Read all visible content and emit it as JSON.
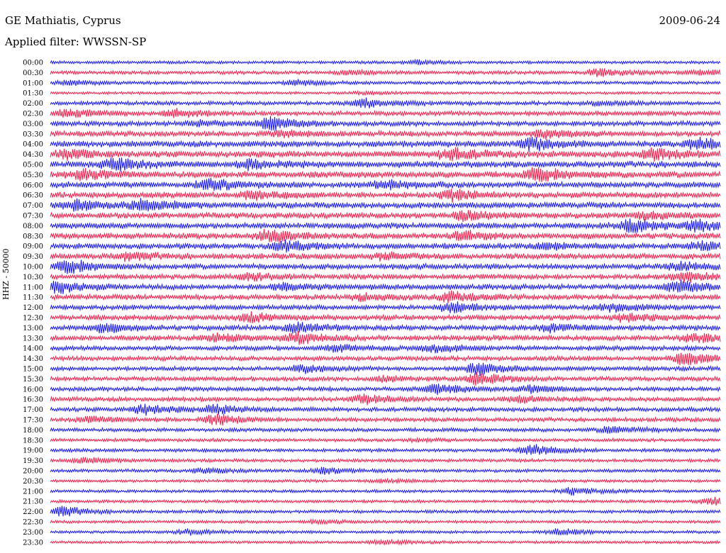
{
  "header": {
    "station": "GE Mathiatis, Cyprus",
    "date": "2009-06-24",
    "filter": "Applied filter: WWSSN-SP"
  },
  "chart_data": {
    "type": "line",
    "title": "GE Mathiatis, Cyprus",
    "subtitle": "Applied filter: WWSSN-SP",
    "ylabel": "HHZ - 50000",
    "y_tick_labels": [
      "00:00",
      "00:30",
      "01:00",
      "01:30",
      "02:00",
      "02:30",
      "03:00",
      "03:30",
      "04:00",
      "04:30",
      "05:00",
      "05:30",
      "06:00",
      "06:30",
      "07:00",
      "07:30",
      "08:00",
      "08:30",
      "09:00",
      "09:30",
      "10:00",
      "10:30",
      "11:00",
      "11:30",
      "12:00",
      "12:30",
      "13:00",
      "13:30",
      "14:00",
      "14:30",
      "15:00",
      "15:30",
      "16:00",
      "16:30",
      "17:00",
      "17:30",
      "18:00",
      "18:30",
      "19:00",
      "19:30",
      "20:00",
      "20:30",
      "21:00",
      "21:30",
      "22:00",
      "22:30",
      "23:00",
      "23:30"
    ],
    "trace_colors": [
      "#1a1aef",
      "#f0204f"
    ],
    "noise_level": [
      0.25,
      0.35,
      0.3,
      0.2,
      0.45,
      0.55,
      0.6,
      0.7,
      0.85,
      0.9,
      0.9,
      0.9,
      0.8,
      0.8,
      0.8,
      0.75,
      0.8,
      0.8,
      0.75,
      0.75,
      0.7,
      0.65,
      0.7,
      0.65,
      0.6,
      0.65,
      0.65,
      0.65,
      0.55,
      0.55,
      0.5,
      0.5,
      0.5,
      0.5,
      0.5,
      0.45,
      0.4,
      0.3,
      0.35,
      0.3,
      0.3,
      0.25,
      0.25,
      0.25,
      0.3,
      0.25,
      0.25,
      0.2
    ],
    "events": [
      [
        {
          "t": 0.55,
          "a": 0.3
        }
      ],
      [
        {
          "t": 0.82,
          "a": 0.6
        },
        {
          "t": 0.45,
          "a": 0.3
        },
        {
          "t": 0.97,
          "a": 0.4
        }
      ],
      [
        {
          "t": 0.37,
          "a": 0.4
        },
        {
          "t": 0.03,
          "a": 0.3
        }
      ],
      [
        {
          "t": 0.47,
          "a": 0.2
        }
      ],
      [
        {
          "t": 0.47,
          "a": 0.7
        },
        {
          "t": 0.82,
          "a": 0.3
        }
      ],
      [
        {
          "t": 0.03,
          "a": 0.6
        },
        {
          "t": 0.19,
          "a": 0.7
        }
      ],
      [
        {
          "t": 0.33,
          "a": 1.0
        },
        {
          "t": 0.22,
          "a": 0.4
        }
      ],
      [
        {
          "t": 0.74,
          "a": 0.6
        },
        {
          "t": 0.35,
          "a": 0.4
        }
      ],
      [
        {
          "t": 0.72,
          "a": 1.0
        },
        {
          "t": 0.97,
          "a": 0.9
        }
      ],
      [
        {
          "t": 0.6,
          "a": 1.0
        },
        {
          "t": 0.9,
          "a": 0.8
        },
        {
          "t": 0.03,
          "a": 0.7
        }
      ],
      [
        {
          "t": 0.1,
          "a": 0.9
        },
        {
          "t": 0.3,
          "a": 0.6
        }
      ],
      [
        {
          "t": 0.73,
          "a": 1.0
        },
        {
          "t": 0.05,
          "a": 0.6
        }
      ],
      [
        {
          "t": 0.24,
          "a": 0.8
        },
        {
          "t": 0.5,
          "a": 0.7
        }
      ],
      [
        {
          "t": 0.6,
          "a": 0.8
        },
        {
          "t": 0.3,
          "a": 0.6
        }
      ],
      [
        {
          "t": 0.04,
          "a": 0.8
        },
        {
          "t": 0.14,
          "a": 0.9
        }
      ],
      [
        {
          "t": 0.62,
          "a": 0.7
        },
        {
          "t": 0.89,
          "a": 0.6
        }
      ],
      [
        {
          "t": 0.87,
          "a": 1.0
        },
        {
          "t": 0.97,
          "a": 0.8
        }
      ],
      [
        {
          "t": 0.33,
          "a": 1.0
        },
        {
          "t": 0.62,
          "a": 0.6
        }
      ],
      [
        {
          "t": 0.35,
          "a": 0.8
        },
        {
          "t": 0.74,
          "a": 0.6
        },
        {
          "t": 0.97,
          "a": 0.6
        }
      ],
      [
        {
          "t": 0.12,
          "a": 0.6
        },
        {
          "t": 0.5,
          "a": 0.5
        }
      ],
      [
        {
          "t": 0.03,
          "a": 1.0
        },
        {
          "t": 0.94,
          "a": 0.7
        }
      ],
      [
        {
          "t": 0.3,
          "a": 0.5
        },
        {
          "t": 0.95,
          "a": 0.9
        }
      ],
      [
        {
          "t": 0.01,
          "a": 1.0
        },
        {
          "t": 0.35,
          "a": 0.5
        },
        {
          "t": 0.94,
          "a": 0.9
        }
      ],
      [
        {
          "t": 0.6,
          "a": 0.8
        },
        {
          "t": 0.47,
          "a": 0.5
        }
      ],
      [
        {
          "t": 0.6,
          "a": 0.8
        },
        {
          "t": 0.84,
          "a": 0.7
        }
      ],
      [
        {
          "t": 0.3,
          "a": 0.7
        },
        {
          "t": 0.86,
          "a": 0.6
        }
      ],
      [
        {
          "t": 0.37,
          "a": 0.8
        },
        {
          "t": 0.08,
          "a": 0.7
        },
        {
          "t": 0.75,
          "a": 0.6
        }
      ],
      [
        {
          "t": 0.37,
          "a": 0.9
        },
        {
          "t": 0.25,
          "a": 0.6
        },
        {
          "t": 0.96,
          "a": 0.7
        }
      ],
      [
        {
          "t": 0.57,
          "a": 0.7
        },
        {
          "t": 0.43,
          "a": 0.5
        }
      ],
      [
        {
          "t": 0.95,
          "a": 1.0
        }
      ],
      [
        {
          "t": 0.38,
          "a": 0.6
        },
        {
          "t": 0.64,
          "a": 1.0
        }
      ],
      [
        {
          "t": 0.64,
          "a": 1.0
        },
        {
          "t": 0.5,
          "a": 0.4
        }
      ],
      [
        {
          "t": 0.58,
          "a": 0.8
        },
        {
          "t": 0.72,
          "a": 0.6
        }
      ],
      [
        {
          "t": 0.47,
          "a": 0.7
        },
        {
          "t": 0.7,
          "a": 0.5
        }
      ],
      [
        {
          "t": 0.14,
          "a": 0.8
        },
        {
          "t": 0.25,
          "a": 0.7
        }
      ],
      [
        {
          "t": 0.25,
          "a": 0.8
        },
        {
          "t": 0.06,
          "a": 0.5
        }
      ],
      [
        {
          "t": 0.84,
          "a": 0.6
        }
      ],
      [
        {
          "t": 0.55,
          "a": 0.2
        }
      ],
      [
        {
          "t": 0.72,
          "a": 0.9
        }
      ],
      [
        {
          "t": 0.05,
          "a": 0.4
        }
      ],
      [
        {
          "t": 0.23,
          "a": 0.4
        },
        {
          "t": 0.41,
          "a": 0.5
        }
      ],
      [
        {
          "t": 0.5,
          "a": 0.2
        }
      ],
      [
        {
          "t": 0.78,
          "a": 0.6
        }
      ],
      [
        {
          "t": 0.99,
          "a": 0.6
        }
      ],
      [
        {
          "t": 0.02,
          "a": 0.8
        }
      ],
      [
        {
          "t": 0.4,
          "a": 0.2
        }
      ],
      [
        {
          "t": 0.21,
          "a": 0.4
        },
        {
          "t": 0.76,
          "a": 0.5
        }
      ],
      [
        {
          "t": 0.5,
          "a": 0.3
        }
      ]
    ]
  }
}
